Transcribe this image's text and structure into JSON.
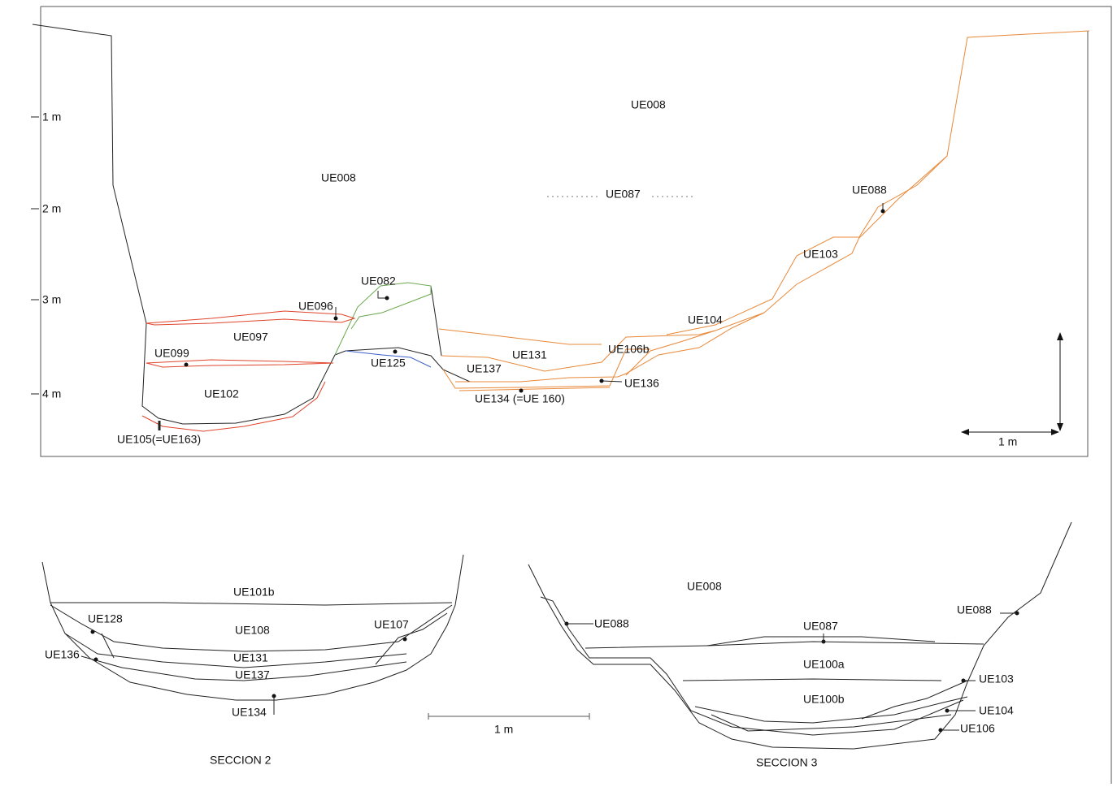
{
  "section1": {
    "depth_scale": [
      "1 m",
      "2 m",
      "3 m",
      "4 m"
    ],
    "labels": [
      "UE008",
      "UE008",
      "UE087",
      "UE088",
      "UE103",
      "UE104",
      "UE082",
      "UE096",
      "UE097",
      "UE099",
      "UE102",
      "UE125",
      "UE131",
      "UE106b",
      "UE137",
      "UE136",
      "UE134 (=UE 160)",
      "UE105(=UE163)"
    ],
    "scale": "1 m"
  },
  "section2": {
    "labels": [
      "UE101b",
      "UE128",
      "UE108",
      "UE107",
      "UE136",
      "UE131",
      "UE137",
      "UE134"
    ],
    "title": "SECCION 2"
  },
  "scale": "1 m",
  "section3": {
    "labels": [
      "UE008",
      "UE088",
      "UE087",
      "UE088",
      "UE100a",
      "UE103",
      "UE100b",
      "UE104",
      "UE106"
    ],
    "title": "SECCION 3"
  }
}
